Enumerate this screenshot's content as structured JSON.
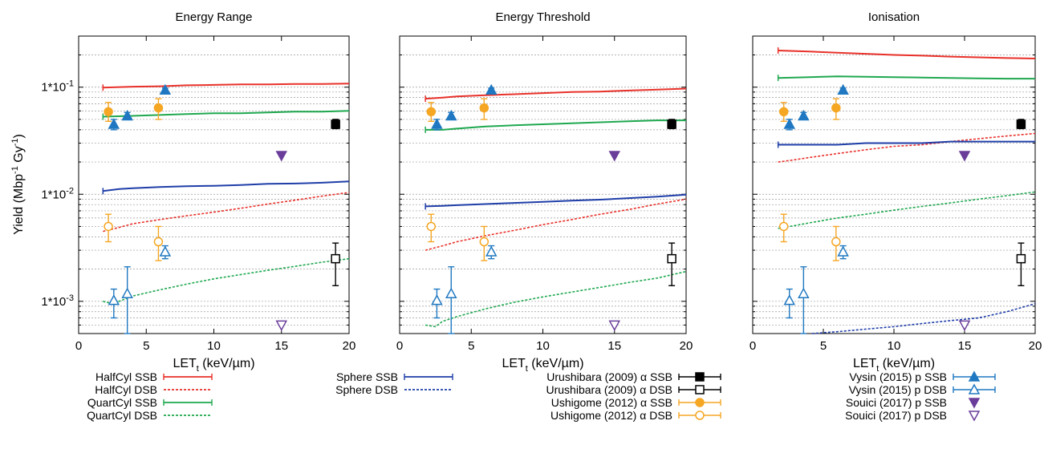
{
  "y_axis_label": "Yield (Mbp-1 Gy-1)",
  "y_axis_label_parts": [
    "Yield (Mbp",
    "-1",
    " Gy",
    "-1",
    ")"
  ],
  "x_axis_label_parts": [
    "LET",
    "t",
    " (keV/µm)"
  ],
  "colors": {
    "halfcyl": "#e8312a",
    "quartcyl": "#1fa84f",
    "sphere": "#1f3ea8",
    "urushibara": "#000000",
    "ushigome": "#f5a623",
    "vysin": "#1f78c1",
    "souici": "#6a3d9a",
    "grid": "#9a9a9a"
  },
  "legend": {
    "col1": [
      "HalfCyl SSB",
      "HalfCyl DSB",
      "QuartCyl SSB",
      "QuartCyl DSB"
    ],
    "col2": [
      "Sphere SSB",
      "Sphere DSB"
    ],
    "col3": [
      "Urushibara (2009) α SSB",
      "Urushibara (2009) α DSB",
      "Ushigome (2012) α SSB",
      "Ushigome (2012) α DSB"
    ],
    "col4": [
      "Vysin (2015) p SSB",
      "Vysin (2015) p DSB",
      "Souici (2017) p SSB",
      "Souici (2017) p DSB"
    ]
  },
  "chart_data": [
    {
      "type": "line",
      "title": "Energy Range",
      "xlabel": "LETt (keV/µm)",
      "ylabel": "Yield (Mbp-1 Gy-1)",
      "xlim": [
        0,
        20
      ],
      "ylim": [
        0.0005,
        0.3
      ],
      "yscale": "log",
      "x_ticks": [
        "0",
        "5",
        "10",
        "15",
        "20"
      ],
      "y_ticks": [
        "1*10-3",
        "1*10-2",
        "1*10-1"
      ],
      "grid": "horizontal",
      "series": [
        {
          "name": "HalfCyl SSB",
          "key": "halfcyl",
          "style": "solid",
          "x": [
            1.8,
            4,
            6,
            8,
            10,
            12,
            14,
            16,
            18,
            20
          ],
          "y": [
            0.099,
            0.101,
            0.102,
            0.104,
            0.105,
            0.106,
            0.106,
            0.107,
            0.107,
            0.108
          ]
        },
        {
          "name": "HalfCyl DSB",
          "key": "halfcyl",
          "style": "dashed",
          "x": [
            1.8,
            3,
            4,
            6,
            8,
            10,
            12,
            14,
            16,
            18,
            20
          ],
          "y": [
            0.0045,
            0.0049,
            0.0053,
            0.0058,
            0.0063,
            0.0068,
            0.0074,
            0.0081,
            0.0088,
            0.0096,
            0.0104
          ]
        },
        {
          "name": "QuartCyl SSB",
          "key": "quartcyl",
          "style": "solid",
          "x": [
            1.8,
            4,
            6,
            8,
            10,
            12,
            14,
            16,
            18,
            20
          ],
          "y": [
            0.053,
            0.054,
            0.055,
            0.056,
            0.057,
            0.057,
            0.058,
            0.059,
            0.059,
            0.06
          ]
        },
        {
          "name": "QuartCyl DSB",
          "key": "quartcyl",
          "style": "dashed",
          "x": [
            1.8,
            2.5,
            3,
            4,
            6,
            8,
            10,
            12,
            14,
            16,
            18,
            20
          ],
          "y": [
            0.001,
            0.00095,
            0.001,
            0.00112,
            0.00128,
            0.00145,
            0.00162,
            0.00178,
            0.00195,
            0.00212,
            0.00232,
            0.0025
          ]
        },
        {
          "name": "Sphere SSB",
          "key": "sphere",
          "style": "solid",
          "x": [
            1.8,
            3,
            4,
            6,
            8,
            10,
            12,
            14,
            16,
            18,
            20
          ],
          "y": [
            0.0107,
            0.0112,
            0.0114,
            0.0117,
            0.0119,
            0.012,
            0.0122,
            0.0125,
            0.0126,
            0.0128,
            0.0132
          ]
        }
      ],
      "experimental": [
        {
          "name": "Urushibara (2009) α SSB",
          "x": 19,
          "y": 0.045,
          "err_lo": 0.041,
          "err_hi": 0.05
        },
        {
          "name": "Urushibara (2009) α DSB",
          "x": 19,
          "y": 0.0025,
          "err_lo": 0.0014,
          "err_hi": 0.0035
        },
        {
          "name": "Ushigome (2012) α SSB",
          "x": [
            2.2,
            5.9
          ],
          "y": [
            0.059,
            0.064
          ],
          "err_lo": [
            0.048,
            0.05
          ],
          "err_hi": [
            0.072,
            0.078
          ]
        },
        {
          "name": "Ushigome (2012) α DSB",
          "x": [
            2.2,
            5.9
          ],
          "y": [
            0.005,
            0.0036
          ],
          "err_lo": [
            0.0036,
            0.0024
          ],
          "err_hi": [
            0.0065,
            0.005
          ]
        },
        {
          "name": "Vysin (2015) p SSB",
          "x": [
            2.6,
            3.6,
            6.4
          ],
          "y": [
            0.045,
            0.054,
            0.094
          ],
          "err_lo": [
            0.04,
            0.05,
            0.09
          ],
          "err_hi": [
            0.05,
            0.058,
            0.098
          ]
        },
        {
          "name": "Vysin (2015) p DSB",
          "x": [
            2.6,
            3.6,
            6.4
          ],
          "y": [
            0.00102,
            0.00118,
            0.0029
          ],
          "err_lo": [
            0.0007,
            0.0004,
            0.0025
          ],
          "err_hi": [
            0.0013,
            0.0021,
            0.0033
          ]
        },
        {
          "name": "Souici (2017) p SSB",
          "x": [
            15
          ],
          "y": [
            0.023
          ]
        },
        {
          "name": "Souici (2017) p DSB",
          "x": [
            15
          ],
          "y": [
            0.0006
          ]
        }
      ]
    },
    {
      "type": "line",
      "title": "Energy Threshold",
      "xlabel": "LETt (keV/µm)",
      "xlim": [
        0,
        20
      ],
      "ylim": [
        0.0005,
        0.3
      ],
      "yscale": "log",
      "x_ticks": [
        "0",
        "5",
        "10",
        "15",
        "20"
      ],
      "grid": "horizontal",
      "series": [
        {
          "name": "HalfCyl SSB",
          "key": "halfcyl",
          "style": "solid",
          "x": [
            1.8,
            3,
            4,
            6,
            8,
            10,
            12,
            14,
            16,
            18,
            20
          ],
          "y": [
            0.078,
            0.08,
            0.082,
            0.084,
            0.086,
            0.088,
            0.09,
            0.091,
            0.093,
            0.095,
            0.097
          ]
        },
        {
          "name": "HalfCyl DSB",
          "key": "halfcyl",
          "style": "dashed",
          "x": [
            1.8,
            3,
            4,
            6,
            8,
            10,
            12,
            14,
            16,
            18,
            20
          ],
          "y": [
            0.003,
            0.0033,
            0.0036,
            0.0041,
            0.0046,
            0.0052,
            0.0058,
            0.0065,
            0.0072,
            0.0081,
            0.009
          ]
        },
        {
          "name": "QuartCyl SSB",
          "key": "quartcyl",
          "style": "solid",
          "x": [
            1.8,
            3,
            4,
            6,
            8,
            10,
            12,
            14,
            16,
            18,
            20
          ],
          "y": [
            0.04,
            0.04,
            0.041,
            0.043,
            0.044,
            0.045,
            0.046,
            0.047,
            0.048,
            0.049,
            0.049
          ]
        },
        {
          "name": "QuartCyl DSB",
          "key": "quartcyl",
          "style": "dashed",
          "x": [
            1.8,
            2.5,
            3,
            4,
            6,
            8,
            10,
            12,
            14,
            16,
            18,
            20
          ],
          "y": [
            0.0006,
            0.00058,
            0.00065,
            0.00072,
            0.00085,
            0.00098,
            0.0011,
            0.00122,
            0.00135,
            0.0015,
            0.00165,
            0.0019
          ]
        },
        {
          "name": "Sphere SSB",
          "key": "sphere",
          "style": "solid",
          "x": [
            1.8,
            3,
            4,
            6,
            8,
            10,
            12,
            14,
            16,
            18,
            20
          ],
          "y": [
            0.0077,
            0.0078,
            0.0079,
            0.0081,
            0.0083,
            0.0085,
            0.0087,
            0.0089,
            0.0092,
            0.0095,
            0.0099
          ]
        }
      ],
      "experimental": [
        {
          "name": "Urushibara (2009) α SSB",
          "x": 19,
          "y": 0.045,
          "err_lo": 0.041,
          "err_hi": 0.05
        },
        {
          "name": "Urushibara (2009) α DSB",
          "x": 19,
          "y": 0.0025,
          "err_lo": 0.0014,
          "err_hi": 0.0035
        },
        {
          "name": "Ushigome (2012) α SSB",
          "x": [
            2.2,
            5.9
          ],
          "y": [
            0.059,
            0.064
          ],
          "err_lo": [
            0.048,
            0.05
          ],
          "err_hi": [
            0.072,
            0.078
          ]
        },
        {
          "name": "Ushigome (2012) α DSB",
          "x": [
            2.2,
            5.9
          ],
          "y": [
            0.005,
            0.0036
          ],
          "err_lo": [
            0.0036,
            0.0024
          ],
          "err_hi": [
            0.0065,
            0.005
          ]
        },
        {
          "name": "Vysin (2015) p SSB",
          "x": [
            2.6,
            3.6,
            6.4
          ],
          "y": [
            0.045,
            0.054,
            0.094
          ],
          "err_lo": [
            0.04,
            0.05,
            0.09
          ],
          "err_hi": [
            0.05,
            0.058,
            0.098
          ]
        },
        {
          "name": "Vysin (2015) p DSB",
          "x": [
            2.6,
            3.6,
            6.4
          ],
          "y": [
            0.00102,
            0.00118,
            0.0029
          ],
          "err_lo": [
            0.0007,
            0.0004,
            0.0025
          ],
          "err_hi": [
            0.0013,
            0.0021,
            0.0033
          ]
        },
        {
          "name": "Souici (2017) p SSB",
          "x": [
            15
          ],
          "y": [
            0.023
          ]
        },
        {
          "name": "Souici (2017) p DSB",
          "x": [
            15
          ],
          "y": [
            0.0006
          ]
        }
      ]
    },
    {
      "type": "line",
      "title": "Ionisation",
      "xlabel": "LETt (keV/µm)",
      "xlim": [
        0,
        20
      ],
      "ylim": [
        0.0005,
        0.3
      ],
      "yscale": "log",
      "x_ticks": [
        "0",
        "5",
        "10",
        "15",
        "20"
      ],
      "grid": "horizontal",
      "series": [
        {
          "name": "HalfCyl SSB",
          "key": "halfcyl",
          "style": "solid",
          "x": [
            1.8,
            4,
            6,
            8,
            10,
            12,
            14,
            16,
            18,
            20
          ],
          "y": [
            0.22,
            0.215,
            0.21,
            0.205,
            0.2,
            0.197,
            0.193,
            0.19,
            0.187,
            0.185
          ]
        },
        {
          "name": "HalfCyl DSB",
          "key": "halfcyl",
          "style": "dashed",
          "x": [
            1.8,
            3,
            4,
            6,
            8,
            10,
            12,
            14,
            16,
            18,
            20
          ],
          "y": [
            0.02,
            0.021,
            0.022,
            0.024,
            0.026,
            0.028,
            0.029,
            0.031,
            0.033,
            0.035,
            0.037
          ]
        },
        {
          "name": "QuartCyl SSB",
          "key": "quartcyl",
          "style": "solid",
          "x": [
            1.8,
            4,
            6,
            8,
            10,
            12,
            14,
            16,
            18,
            20
          ],
          "y": [
            0.122,
            0.124,
            0.126,
            0.125,
            0.124,
            0.123,
            0.122,
            0.121,
            0.12,
            0.12
          ]
        },
        {
          "name": "QuartCyl DSB",
          "key": "quartcyl",
          "style": "dashed",
          "x": [
            1.8,
            3,
            4,
            6,
            8,
            10,
            12,
            14,
            16,
            18,
            20
          ],
          "y": [
            0.0048,
            0.0051,
            0.0054,
            0.006,
            0.0065,
            0.0071,
            0.0077,
            0.0083,
            0.009,
            0.0097,
            0.0105
          ]
        },
        {
          "name": "Sphere SSB",
          "key": "sphere",
          "style": "solid",
          "x": [
            1.8,
            3,
            4,
            6,
            8,
            10,
            12,
            14,
            16,
            18,
            20
          ],
          "y": [
            0.029,
            0.029,
            0.029,
            0.029,
            0.03,
            0.03,
            0.03,
            0.031,
            0.031,
            0.031,
            0.031
          ]
        },
        {
          "name": "Sphere DSB",
          "key": "sphere",
          "style": "dashed",
          "x": [
            4.2,
            6,
            8,
            10,
            12,
            14,
            16,
            18,
            20
          ],
          "y": [
            0.0005,
            0.00052,
            0.00055,
            0.00058,
            0.00062,
            0.00066,
            0.0007,
            0.0008,
            0.00095
          ]
        }
      ],
      "experimental": [
        {
          "name": "Urushibara (2009) α SSB",
          "x": 19,
          "y": 0.045,
          "err_lo": 0.041,
          "err_hi": 0.05
        },
        {
          "name": "Urushibara (2009) α DSB",
          "x": 19,
          "y": 0.0025,
          "err_lo": 0.0014,
          "err_hi": 0.0035
        },
        {
          "name": "Ushigome (2012) α SSB",
          "x": [
            2.2,
            5.9
          ],
          "y": [
            0.059,
            0.064
          ],
          "err_lo": [
            0.048,
            0.05
          ],
          "err_hi": [
            0.072,
            0.078
          ]
        },
        {
          "name": "Ushigome (2012) α DSB",
          "x": [
            2.2,
            5.9
          ],
          "y": [
            0.005,
            0.0036
          ],
          "err_lo": [
            0.0036,
            0.0024
          ],
          "err_hi": [
            0.0065,
            0.005
          ]
        },
        {
          "name": "Vysin (2015) p SSB",
          "x": [
            2.6,
            3.6,
            6.4
          ],
          "y": [
            0.045,
            0.054,
            0.094
          ],
          "err_lo": [
            0.04,
            0.05,
            0.09
          ],
          "err_hi": [
            0.05,
            0.058,
            0.098
          ]
        },
        {
          "name": "Vysin (2015) p DSB",
          "x": [
            2.6,
            3.6,
            6.4
          ],
          "y": [
            0.00102,
            0.00118,
            0.0029
          ],
          "err_lo": [
            0.0007,
            0.0004,
            0.0025
          ],
          "err_hi": [
            0.0013,
            0.0021,
            0.0033
          ]
        },
        {
          "name": "Souici (2017) p SSB",
          "x": [
            15
          ],
          "y": [
            0.023
          ]
        },
        {
          "name": "Souici (2017) p DSB",
          "x": [
            15
          ],
          "y": [
            0.0006
          ]
        }
      ]
    }
  ]
}
